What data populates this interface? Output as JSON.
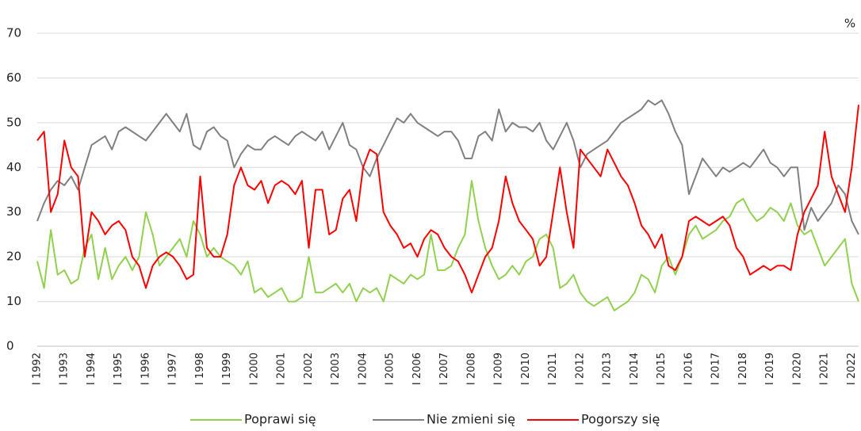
{
  "chart_data": {
    "type": "line",
    "unit_label": "%",
    "categories": [
      "I 1992",
      null,
      null,
      null,
      "I 1993",
      null,
      null,
      null,
      "I 1994",
      null,
      null,
      null,
      "I 1995",
      null,
      null,
      null,
      "I 1996",
      null,
      null,
      null,
      "I 1997",
      null,
      null,
      null,
      "I 1998",
      null,
      null,
      null,
      "I 1999",
      null,
      null,
      null,
      "I 2000",
      null,
      null,
      null,
      "I 2001",
      null,
      null,
      null,
      "I 2002",
      null,
      null,
      null,
      "I 2003",
      null,
      null,
      null,
      "I 2004",
      null,
      null,
      null,
      "I 2005",
      null,
      null,
      null,
      "I 2006",
      null,
      null,
      null,
      "I 2007",
      null,
      null,
      null,
      "I 2008",
      null,
      null,
      null,
      "I 2009",
      null,
      null,
      null,
      "I 2010",
      null,
      null,
      null,
      "I 2011",
      null,
      null,
      null,
      "I 2012",
      null,
      null,
      null,
      "I 2013",
      null,
      null,
      null,
      "I 2014",
      null,
      null,
      null,
      "I 2015",
      null,
      null,
      null,
      "I 2016",
      null,
      null,
      null,
      "I 2017",
      null,
      null,
      null,
      "I 2018",
      null,
      null,
      null,
      "I 2019",
      null,
      null,
      null,
      "I 2020",
      null,
      null,
      null,
      "I 2021",
      null,
      null,
      null,
      "I 2022",
      null
    ],
    "series": [
      {
        "name": "Poprawi się",
        "color": "#92d050",
        "values": [
          19,
          13,
          26,
          16,
          17,
          14,
          15,
          22,
          25,
          15,
          22,
          15,
          18,
          20,
          17,
          20,
          30,
          25,
          18,
          20,
          22,
          24,
          20,
          28,
          25,
          20,
          22,
          20,
          19,
          18,
          16,
          19,
          12,
          13,
          11,
          12,
          13,
          10,
          10,
          11,
          20,
          12,
          12,
          13,
          14,
          12,
          14,
          10,
          13,
          12,
          13,
          10,
          16,
          15,
          14,
          16,
          15,
          16,
          25,
          17,
          17,
          18,
          22,
          25,
          37,
          28,
          22,
          18,
          15,
          16,
          18,
          16,
          19,
          20,
          24,
          25,
          22,
          13,
          14,
          16,
          12,
          10,
          9,
          10,
          11,
          8,
          9,
          10,
          12,
          16,
          15,
          12,
          18,
          20,
          16,
          20,
          25,
          27,
          24,
          25,
          26,
          28,
          29,
          32,
          33,
          30,
          28,
          29,
          31,
          30,
          28,
          32,
          27,
          25,
          26,
          22,
          18,
          20,
          22,
          24,
          14,
          10
        ]
      },
      {
        "name": "Nie zmieni się",
        "color": "#808080",
        "values": [
          28,
          32,
          35,
          37,
          36,
          38,
          35,
          40,
          45,
          46,
          47,
          44,
          48,
          49,
          48,
          47,
          46,
          48,
          50,
          52,
          50,
          48,
          52,
          45,
          44,
          48,
          49,
          47,
          46,
          40,
          43,
          45,
          44,
          44,
          46,
          47,
          46,
          45,
          47,
          48,
          47,
          46,
          48,
          44,
          47,
          50,
          45,
          44,
          40,
          38,
          42,
          45,
          48,
          51,
          50,
          52,
          50,
          49,
          48,
          47,
          48,
          48,
          46,
          42,
          42,
          47,
          48,
          46,
          53,
          48,
          50,
          49,
          49,
          48,
          50,
          46,
          44,
          47,
          50,
          46,
          40,
          43,
          44,
          45,
          46,
          48,
          50,
          51,
          52,
          53,
          55,
          54,
          55,
          52,
          48,
          45,
          34,
          38,
          42,
          40,
          38,
          40,
          39,
          40,
          41,
          40,
          42,
          44,
          41,
          40,
          38,
          40,
          40,
          26,
          31,
          28,
          30,
          32,
          36,
          34,
          28,
          25
        ]
      },
      {
        "name": "Pogorszy się",
        "color": "#ff0000",
        "values": [
          46,
          48,
          30,
          34,
          46,
          40,
          38,
          20,
          30,
          28,
          25,
          27,
          28,
          26,
          20,
          18,
          13,
          18,
          20,
          21,
          20,
          18,
          15,
          16,
          38,
          22,
          20,
          20,
          25,
          36,
          40,
          36,
          35,
          37,
          32,
          36,
          37,
          36,
          34,
          37,
          22,
          35,
          35,
          25,
          26,
          33,
          35,
          28,
          40,
          44,
          43,
          30,
          27,
          25,
          22,
          23,
          20,
          24,
          26,
          25,
          22,
          20,
          19,
          16,
          12,
          16,
          20,
          22,
          28,
          38,
          32,
          28,
          26,
          24,
          18,
          20,
          30,
          40,
          30,
          22,
          44,
          42,
          40,
          38,
          44,
          41,
          38,
          36,
          32,
          27,
          25,
          22,
          25,
          18,
          17,
          20,
          28,
          29,
          28,
          27,
          28,
          29,
          27,
          22,
          20,
          16,
          17,
          18,
          17,
          18,
          18,
          17,
          25,
          30,
          33,
          36,
          48,
          38,
          34,
          30,
          40,
          54
        ]
      }
    ],
    "ylim": [
      0,
      70
    ],
    "yticks": [
      0,
      10,
      20,
      30,
      40,
      50,
      60,
      70
    ],
    "grid": true,
    "legend": "bottom"
  }
}
